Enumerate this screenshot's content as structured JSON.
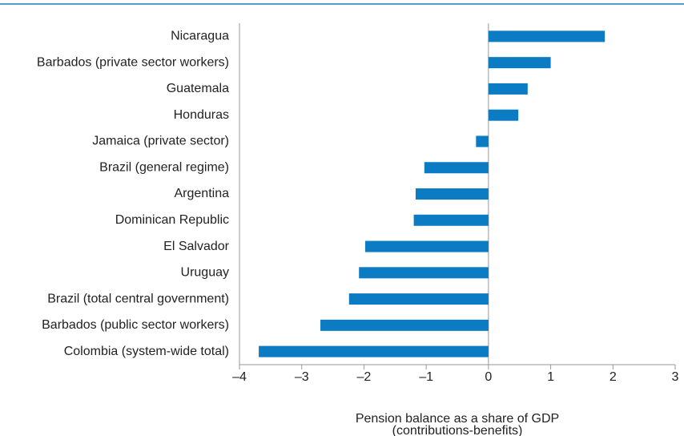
{
  "chart_data": {
    "type": "hbar",
    "categories": [
      "Nicaragua",
      "Barbados (private sector workers)",
      "Guatemala",
      "Honduras",
      "Jamaica (private sector)",
      "Brazil (general regime)",
      "Argentina",
      "Dominican Republic",
      "El Salvador",
      "Uruguay",
      "Brazil (total central government)",
      "Barbados (public sector workers)",
      "Colombia (system-wide total)"
    ],
    "values": [
      1.87,
      1.0,
      0.63,
      0.48,
      -0.2,
      -1.03,
      -1.17,
      -1.2,
      -1.98,
      -2.08,
      -2.24,
      -2.7,
      -3.69
    ],
    "color": "#0b7bc4",
    "xlim": [
      -4,
      3
    ],
    "xticks": [
      {
        "value": -4,
        "label": "–4"
      },
      {
        "value": -3,
        "label": "–3"
      },
      {
        "value": -2,
        "label": "–2"
      },
      {
        "value": -1,
        "label": "–1"
      },
      0,
      1,
      2,
      3
    ],
    "xlabel": [
      "Pension balance as a share of GDP",
      "(contributions-benefits)"
    ]
  }
}
